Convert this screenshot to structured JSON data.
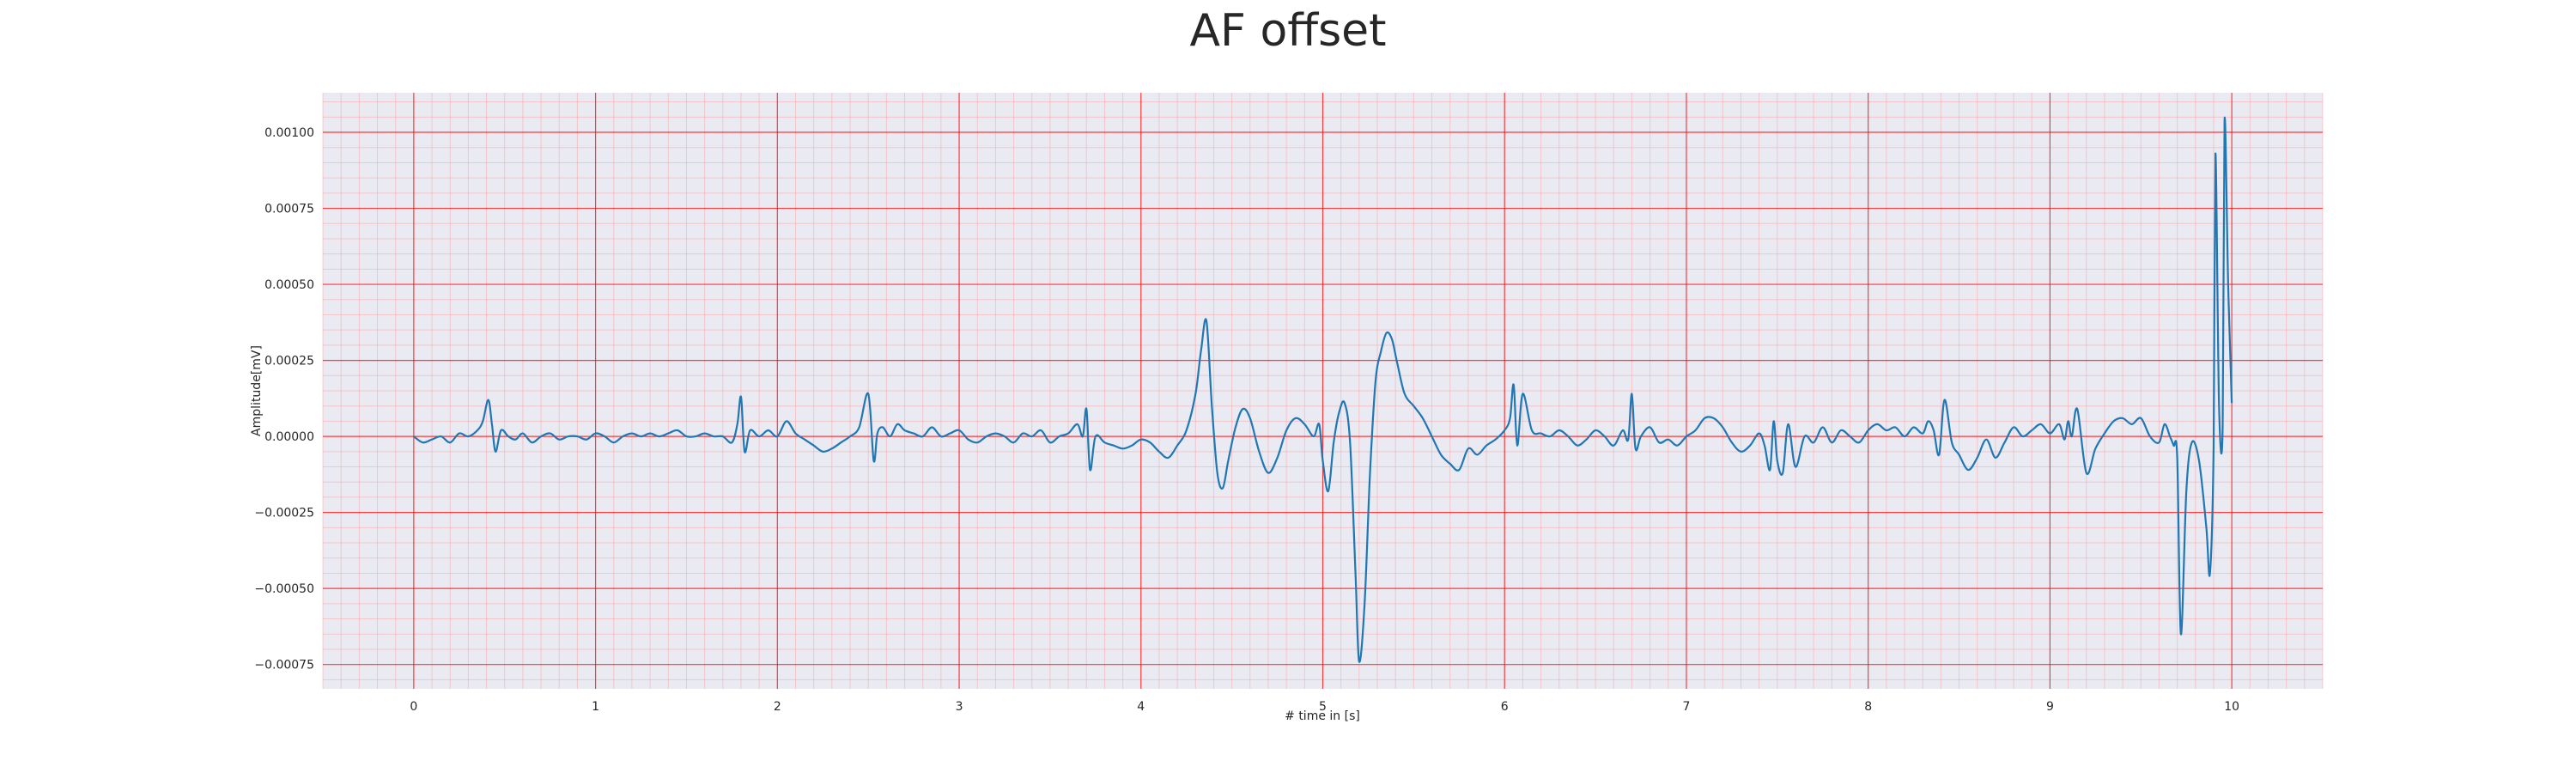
{
  "chart_data": {
    "type": "line",
    "title": "AF offset",
    "xlabel": "# time in [s]",
    "ylabel": "Amplitude[mV]",
    "xlim": [
      -0.5,
      10.5
    ],
    "ylim": [
      -0.00083,
      0.00113
    ],
    "xticks": [
      0,
      1,
      2,
      3,
      4,
      5,
      6,
      7,
      8,
      9,
      10
    ],
    "xtick_labels": [
      "0",
      "1",
      "2",
      "3",
      "4",
      "5",
      "6",
      "7",
      "8",
      "9",
      "10"
    ],
    "yticks": [
      -0.00075,
      -0.0005,
      -0.00025,
      0,
      0.00025,
      0.0005,
      0.00075,
      0.001
    ],
    "ytick_labels": [
      "−0.00075",
      "−0.00050",
      "−0.00025",
      "0.00000",
      "0.00025",
      "0.00050",
      "0.00075",
      "0.00100"
    ],
    "grid": true,
    "minor_grid": true,
    "colors": {
      "plot_background": "#eaeaf2",
      "major_grid": "#ff0000",
      "minor_grid": "#ff9999",
      "line": "#1f77b4"
    },
    "series": [
      {
        "x": [
          0.0,
          0.05,
          0.1,
          0.15,
          0.2,
          0.25,
          0.3,
          0.35,
          0.38,
          0.41,
          0.43,
          0.45,
          0.48,
          0.52,
          0.56,
          0.6,
          0.65,
          0.7,
          0.75,
          0.8,
          0.85,
          0.9,
          0.95,
          1.0,
          1.05,
          1.1,
          1.15,
          1.2,
          1.25,
          1.3,
          1.35,
          1.4,
          1.45,
          1.5,
          1.55,
          1.6,
          1.65,
          1.7,
          1.75,
          1.78,
          1.8,
          1.82,
          1.85,
          1.9,
          1.95,
          2.0,
          2.05,
          2.1,
          2.15,
          2.2,
          2.25,
          2.3,
          2.35,
          2.4,
          2.45,
          2.5,
          2.53,
          2.55,
          2.58,
          2.62,
          2.66,
          2.7,
          2.75,
          2.8,
          2.85,
          2.9,
          2.95,
          3.0,
          3.05,
          3.1,
          3.15,
          3.2,
          3.25,
          3.3,
          3.35,
          3.4,
          3.45,
          3.5,
          3.55,
          3.6,
          3.65,
          3.68,
          3.7,
          3.72,
          3.75,
          3.8,
          3.85,
          3.9,
          3.95,
          4.0,
          4.05,
          4.1,
          4.15,
          4.2,
          4.25,
          4.3,
          4.33,
          4.36,
          4.39,
          4.42,
          4.45,
          4.48,
          4.52,
          4.56,
          4.6,
          4.65,
          4.7,
          4.75,
          4.8,
          4.85,
          4.9,
          4.95,
          4.98,
          5.0,
          5.03,
          5.06,
          5.09,
          5.12,
          5.15,
          5.18,
          5.2,
          5.23,
          5.26,
          5.29,
          5.32,
          5.35,
          5.38,
          5.41,
          5.45,
          5.5,
          5.55,
          5.6,
          5.65,
          5.7,
          5.75,
          5.8,
          5.85,
          5.9,
          5.95,
          6.0,
          6.03,
          6.05,
          6.07,
          6.1,
          6.15,
          6.2,
          6.25,
          6.3,
          6.35,
          6.4,
          6.45,
          6.5,
          6.55,
          6.6,
          6.65,
          6.68,
          6.7,
          6.72,
          6.75,
          6.8,
          6.85,
          6.9,
          6.95,
          7.0,
          7.05,
          7.1,
          7.15,
          7.2,
          7.25,
          7.3,
          7.35,
          7.4,
          7.43,
          7.46,
          7.48,
          7.5,
          7.53,
          7.56,
          7.6,
          7.65,
          7.7,
          7.75,
          7.8,
          7.85,
          7.9,
          7.95,
          8.0,
          8.05,
          8.1,
          8.15,
          8.2,
          8.25,
          8.3,
          8.33,
          8.36,
          8.39,
          8.42,
          8.46,
          8.5,
          8.55,
          8.6,
          8.65,
          8.7,
          8.75,
          8.8,
          8.85,
          8.9,
          8.95,
          9.0,
          9.05,
          9.08,
          9.1,
          9.12,
          9.15,
          9.2,
          9.25,
          9.3,
          9.35,
          9.4,
          9.45,
          9.5,
          9.55,
          9.6,
          9.63,
          9.66,
          9.68,
          9.7,
          9.72,
          9.75,
          9.78,
          9.82,
          9.86,
          9.88,
          9.9,
          9.91,
          9.93,
          9.95,
          9.96,
          9.98,
          10.0
        ],
        "y": [
          0.0,
          -2e-05,
          -1e-05,
          0.0,
          -2e-05,
          1e-05,
          0.0,
          2e-05,
          5e-05,
          0.00012,
          4e-05,
          -5e-05,
          2e-05,
          0.0,
          -1e-05,
          1e-05,
          -2e-05,
          0.0,
          1e-05,
          -1e-05,
          0.0,
          0.0,
          -1e-05,
          1e-05,
          0.0,
          -2e-05,
          0.0,
          1e-05,
          0.0,
          1e-05,
          0.0,
          1e-05,
          2e-05,
          0.0,
          0.0,
          1e-05,
          0.0,
          0.0,
          -2e-05,
          4e-05,
          0.00013,
          -5e-05,
          2e-05,
          0.0,
          2e-05,
          0.0,
          5e-05,
          1e-05,
          -1e-05,
          -3e-05,
          -5e-05,
          -4e-05,
          -2e-05,
          0.0,
          3e-05,
          0.00014,
          -8e-05,
          1e-05,
          3e-05,
          0.0,
          4e-05,
          2e-05,
          1e-05,
          0.0,
          3e-05,
          0.0,
          1e-05,
          2e-05,
          -1e-05,
          -2e-05,
          0.0,
          1e-05,
          0.0,
          -2e-05,
          1e-05,
          0.0,
          2e-05,
          -2e-05,
          0.0,
          1e-05,
          4e-05,
          0.0,
          9e-05,
          -0.00011,
          0.0,
          -2e-05,
          -3e-05,
          -4e-05,
          -3e-05,
          -1e-05,
          -2e-05,
          -5e-05,
          -7e-05,
          -3e-05,
          2e-05,
          0.00014,
          0.00028,
          0.00038,
          0.0001,
          -0.00012,
          -0.00017,
          -8e-05,
          3e-05,
          9e-05,
          6e-05,
          -5e-05,
          -0.00012,
          -7e-05,
          2e-05,
          6e-05,
          4e-05,
          0.0,
          4e-05,
          -8e-05,
          -0.00018,
          -2e-05,
          8e-05,
          0.00011,
          -2e-05,
          -0.00045,
          -0.00074,
          -0.00055,
          -0.00012,
          0.00018,
          0.00028,
          0.00034,
          0.00032,
          0.00024,
          0.00014,
          0.0001,
          6e-05,
          0.0,
          -6e-05,
          -9e-05,
          -0.00011,
          -4e-05,
          -6e-05,
          -3e-05,
          -1e-05,
          2e-05,
          6e-05,
          0.00017,
          -3e-05,
          0.00014,
          2e-05,
          1e-05,
          0.0,
          2e-05,
          0.0,
          -3e-05,
          -1e-05,
          2e-05,
          0.0,
          -3e-05,
          2e-05,
          -1e-05,
          0.00014,
          -4e-05,
          0.0,
          3e-05,
          -2e-05,
          -1e-05,
          -3e-05,
          0.0,
          2e-05,
          6e-05,
          6e-05,
          3e-05,
          -2e-05,
          -5e-05,
          -3e-05,
          1e-05,
          -3e-05,
          -0.00011,
          5e-05,
          -8e-05,
          -0.00012,
          4e-05,
          -0.0001,
          0.0,
          -2e-05,
          3e-05,
          -2e-05,
          2e-05,
          0.0,
          -2e-05,
          2e-05,
          4e-05,
          2e-05,
          3e-05,
          0.0,
          3e-05,
          1e-05,
          5e-05,
          2e-05,
          -6e-05,
          0.00012,
          -2e-05,
          -6e-05,
          -0.00011,
          -7e-05,
          -1e-05,
          -7e-05,
          -2e-05,
          3e-05,
          0.0,
          2e-05,
          4e-05,
          1e-05,
          4e-05,
          -1e-05,
          5e-05,
          0.0,
          9e-05,
          -0.00012,
          -4e-05,
          1e-05,
          5e-05,
          6e-05,
          4e-05,
          6e-05,
          0.0,
          -2e-05,
          4e-05,
          0.0,
          -3e-05,
          -7e-05,
          -0.00065,
          -0.00018,
          -2e-05,
          -8e-05,
          -0.0003,
          -0.00045,
          -3e-05,
          0.00093,
          0.0001,
          3e-05,
          0.00104,
          0.0005,
          0.00011
        ]
      }
    ]
  }
}
